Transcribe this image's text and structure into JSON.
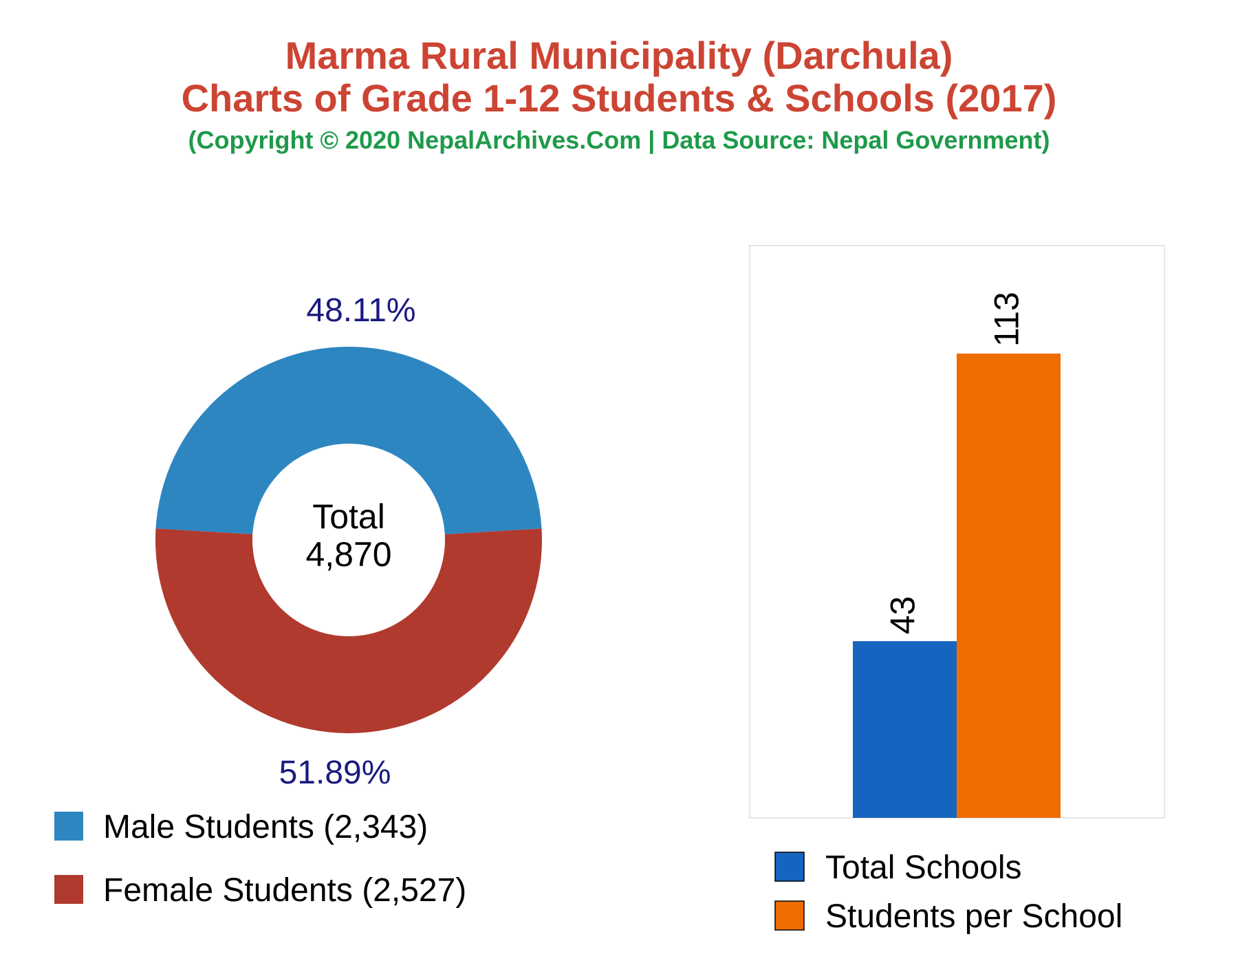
{
  "header": {
    "title_line1": "Marma Rural Municipality (Darchula)",
    "title_line2": "Charts of Grade 1-12 Students & Schools (2017)",
    "subtitle": "(Copyright © 2020 NepalArchives.Com | Data Source: Nepal Government)"
  },
  "donut": {
    "center_label": "Total",
    "center_value": "4,870"
  },
  "colors": {
    "title": "#cc4433",
    "subtitle": "#1e9a4a",
    "male": "#2e86c1",
    "female": "#b03a2e",
    "schools": "#1565c0",
    "per_school": "#ef6c00",
    "pct_label": "#1a1a80"
  },
  "chart_data": [
    {
      "type": "pie",
      "categories": [
        "Male Students (2,343)",
        "Female Students (2,527)"
      ],
      "values": [
        2343,
        2527
      ],
      "percent_labels": [
        "48.11%",
        "51.89%"
      ],
      "colors": [
        "#2e86c1",
        "#b03a2e"
      ],
      "legend": "bottom-left"
    },
    {
      "type": "bar",
      "categories": [
        "Total Schools",
        "Students per School"
      ],
      "values": [
        43,
        113
      ],
      "value_labels": [
        "43",
        "113"
      ],
      "colors": [
        "#1565c0",
        "#ef6c00"
      ],
      "ylim": [
        0,
        150
      ],
      "grid": false,
      "legend": "bottom"
    }
  ]
}
